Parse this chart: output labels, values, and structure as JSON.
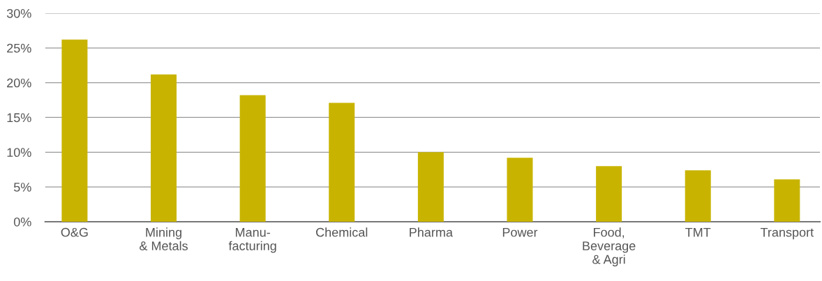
{
  "chart_data": {
    "type": "bar",
    "categories": [
      "O&G",
      "Mining\n& Metals",
      "Manu-\nfacturing",
      "Chemical",
      "Pharma",
      "Power",
      "Food,\nBeverage\n& Agri",
      "TMT",
      "Transport"
    ],
    "values": [
      26.2,
      21.2,
      18.2,
      17.1,
      10.0,
      9.2,
      8.0,
      7.4,
      6.1
    ],
    "color": "#c8b400",
    "ylim": [
      0,
      30
    ],
    "yticks": [
      {
        "value": 0,
        "label": "0%"
      },
      {
        "value": 5,
        "label": "5%"
      },
      {
        "value": 10,
        "label": "10%"
      },
      {
        "value": 15,
        "label": "15%"
      },
      {
        "value": 20,
        "label": "20%"
      },
      {
        "value": 25,
        "label": "25%"
      },
      {
        "value": 30,
        "label": "30%"
      }
    ],
    "grid": "y"
  }
}
